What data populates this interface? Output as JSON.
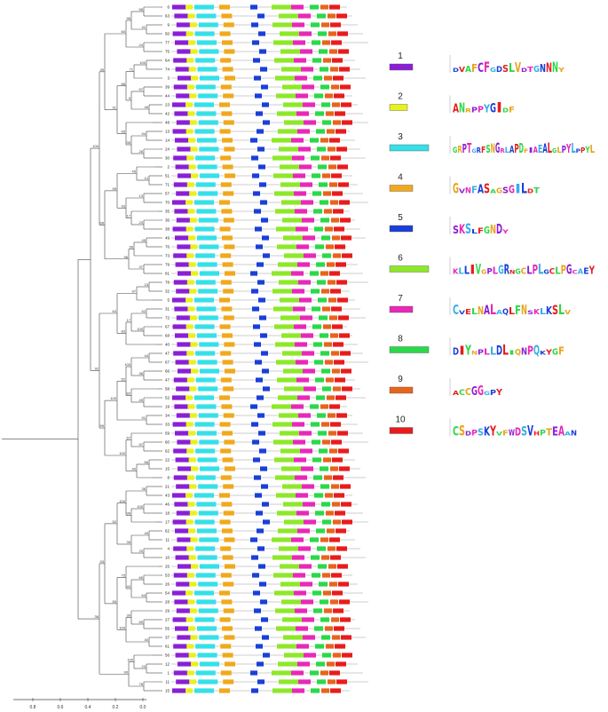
{
  "tree": {
    "leaves": [
      "6",
      "63",
      "9",
      "50",
      "77",
      "75",
      "64",
      "74",
      "3",
      "39",
      "44",
      "23",
      "42",
      "48",
      "13",
      "14",
      "24",
      "30",
      "2",
      "51",
      "71",
      "57",
      "70",
      "35",
      "36",
      "38",
      "49",
      "76",
      "73",
      "79",
      "81",
      "78",
      "32",
      "5",
      "31",
      "72",
      "67",
      "68",
      "40",
      "47",
      "67",
      "66",
      "47",
      "58",
      "52",
      "19",
      "34",
      "33",
      "59",
      "60",
      "62",
      "22",
      "15",
      "8",
      "21",
      "43",
      "46",
      "18",
      "17",
      "62",
      "11",
      "4",
      "10",
      "25",
      "53",
      "26",
      "54",
      "28",
      "29",
      "27",
      "55",
      "37",
      "61",
      "56",
      "12",
      "1",
      "11",
      "15"
    ],
    "bootstrap": [
      "58",
      "41",
      "24",
      "100",
      "97",
      "46",
      "94",
      "26",
      "12",
      "13",
      "23",
      "45",
      "37",
      "15",
      "52",
      "100",
      "44",
      "36",
      "49",
      "91",
      "97",
      "66",
      "36",
      "100",
      "45",
      "20",
      "65",
      "63",
      "69",
      "40",
      "23",
      "78",
      "96",
      "71",
      "9",
      "35",
      "45",
      "17",
      "96",
      "97",
      "17",
      "100",
      "82",
      "67",
      "40",
      "96",
      "39",
      "40",
      "39",
      "100",
      "60",
      "86",
      "65",
      "93",
      "96",
      "83",
      "52",
      "100",
      "100",
      "75",
      "100",
      "90",
      "91",
      "99",
      "63",
      "100",
      "52",
      "59",
      "39",
      "68",
      "99",
      "93",
      "100",
      "92",
      "38"
    ],
    "scale_ticks": [
      "0.8",
      "0.6",
      "0.4",
      "0.2",
      "0.0"
    ]
  },
  "legend": [
    {
      "motif": "1",
      "color": "#8a1fd6",
      "seq": "DVAFCFGDSLVDTGNNNY"
    },
    {
      "motif": "2",
      "color": "#e8f21a",
      "seq": "ANRPPYGIDF"
    },
    {
      "motif": "3",
      "color": "#35e0e8",
      "seq": "GRPTGRFSNGRLAPDFIAEALGLPYLPPYL"
    },
    {
      "motif": "4",
      "color": "#f0a91c",
      "seq": "GVNFASAGSGILDT"
    },
    {
      "motif": "5",
      "color": "#1a3fd9",
      "seq": "SKSLFGNDY"
    },
    {
      "motif": "6",
      "color": "#8ee82a",
      "seq": "KLLIVGPLGRNGCLPLGCLPGCAEY"
    },
    {
      "motif": "7",
      "color": "#e828b8",
      "seq": "CVELNALAQLFNSKLKSLV"
    },
    {
      "motif": "8",
      "color": "#2ad94a",
      "seq": "DIYNPLLDLIQNPQKYGF"
    },
    {
      "motif": "9",
      "color": "#e8641c",
      "seq": "ACCGGGPY"
    },
    {
      "motif": "10",
      "color": "#e81c1c",
      "seq": "CSDPSKYVFWDSVHPTEAAN"
    }
  ]
}
